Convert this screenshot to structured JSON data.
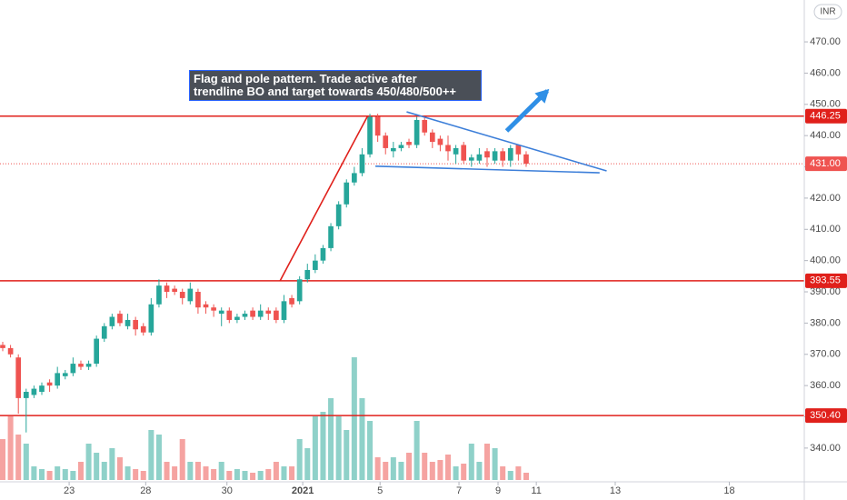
{
  "chart_data": {
    "type": "candlestick",
    "currency": "INR",
    "annotation": [
      "Flag and pole pattern. Trade active after",
      "trendline BO and target towards 450/480/500++"
    ],
    "x": [
      0,
      1,
      2,
      3,
      4,
      5,
      6,
      7,
      8,
      9,
      10,
      11,
      12,
      13,
      14,
      15,
      16,
      17,
      18,
      19,
      20,
      21,
      22,
      23,
      24,
      25,
      26,
      27,
      28,
      29,
      30,
      31,
      32,
      33,
      34,
      35,
      36,
      37,
      38,
      39,
      40,
      41,
      42,
      43,
      44,
      45,
      46,
      47,
      48,
      49,
      50,
      51,
      52,
      53,
      54,
      55,
      56,
      57,
      58,
      59,
      60,
      61,
      62,
      63,
      64,
      65,
      66,
      67
    ],
    "open": [
      373,
      372,
      369,
      356,
      357,
      358,
      361,
      360,
      363,
      364,
      367,
      366,
      367,
      375,
      379,
      383,
      379,
      381,
      379,
      377,
      386,
      392,
      391,
      390,
      387,
      390,
      386,
      385,
      383,
      384,
      381,
      382,
      384,
      382,
      384,
      384,
      381,
      388,
      387,
      394,
      397,
      400,
      404,
      411,
      418,
      425,
      428,
      434,
      446,
      440,
      435,
      436,
      438,
      437,
      445,
      441,
      439,
      437,
      434,
      437,
      432,
      432,
      435,
      432,
      435,
      432,
      437,
      434
    ],
    "high": [
      374,
      373,
      370,
      359,
      360,
      361,
      362,
      366,
      365,
      369,
      368,
      368,
      376,
      380,
      383,
      384,
      383,
      382,
      380,
      388,
      394,
      393,
      392,
      391,
      393,
      391,
      387,
      386,
      385,
      385,
      383,
      384,
      385,
      386,
      385,
      385,
      389,
      389,
      395,
      399,
      402,
      405,
      412,
      419,
      426,
      430,
      436,
      447,
      447,
      441,
      438,
      438,
      439,
      446,
      446,
      442,
      440,
      440,
      437,
      438,
      434,
      436,
      436,
      436,
      436,
      437,
      437,
      435
    ],
    "low": [
      371,
      369,
      351,
      345,
      356,
      357,
      358,
      359,
      362,
      363,
      365,
      365,
      366,
      374,
      378,
      379,
      378,
      376,
      376,
      376,
      385,
      388,
      389,
      386,
      386,
      383,
      383,
      382,
      379,
      380,
      380,
      381,
      381,
      381,
      381,
      380,
      380,
      385,
      386,
      393,
      396,
      399,
      403,
      410,
      417,
      424,
      427,
      433,
      438,
      434,
      433,
      435,
      436,
      436,
      440,
      436,
      435,
      432,
      431,
      431,
      430,
      431,
      430,
      431,
      430,
      430,
      432,
      430
    ],
    "close": [
      372,
      370,
      356,
      358,
      359,
      360,
      360,
      364,
      364,
      367,
      366,
      367,
      375,
      379,
      382,
      380,
      381,
      378,
      377,
      386,
      392,
      390,
      390,
      388,
      391,
      385,
      385,
      384,
      384,
      381,
      382,
      383,
      382,
      384,
      383,
      381,
      387,
      386,
      394,
      397,
      400,
      404,
      411,
      418,
      425,
      428,
      434,
      446,
      440,
      436,
      436,
      437,
      437,
      445,
      441,
      438,
      437,
      435,
      436,
      432,
      433,
      434,
      433,
      435,
      432,
      436,
      434,
      431
    ],
    "volume": [
      45,
      70,
      50,
      40,
      15,
      12,
      10,
      15,
      12,
      10,
      20,
      40,
      30,
      20,
      35,
      25,
      15,
      12,
      10,
      55,
      50,
      20,
      15,
      45,
      20,
      20,
      15,
      12,
      20,
      10,
      12,
      10,
      8,
      10,
      12,
      20,
      15,
      15,
      45,
      35,
      70,
      75,
      90,
      70,
      55,
      135,
      90,
      65,
      25,
      20,
      25,
      20,
      30,
      65,
      30,
      20,
      22,
      28,
      15,
      18,
      40,
      20,
      40,
      35,
      15,
      10,
      15,
      8
    ],
    "up_color": "#26a69a",
    "down_color": "#ef5350",
    "volume_up_color": "#8fd1c9",
    "volume_down_color": "#f5a3a1",
    "xlim": [
      -0.35,
      102.6
    ],
    "xticks": [
      {
        "value": 8.5,
        "label": "23"
      },
      {
        "value": 18.3,
        "label": "28"
      },
      {
        "value": 28.7,
        "label": "30"
      },
      {
        "value": 38.4,
        "label": "2021"
      },
      {
        "value": 48.3,
        "label": "5"
      },
      {
        "value": 58.4,
        "label": "7"
      },
      {
        "value": 63.4,
        "label": "9"
      },
      {
        "value": 68.3,
        "label": "11"
      },
      {
        "value": 78.4,
        "label": "13"
      },
      {
        "value": 93,
        "label": "18"
      }
    ],
    "ylim": [
      329.2,
      483.4
    ],
    "yticks": [
      {
        "value": 340,
        "label": "340.00"
      },
      {
        "value": 350,
        "label": "350.00"
      },
      {
        "value": 360,
        "label": "360.00"
      },
      {
        "value": 370,
        "label": "370.00"
      },
      {
        "value": 380,
        "label": "380.00"
      },
      {
        "value": 390,
        "label": "390.00"
      },
      {
        "value": 400,
        "label": "400.00"
      },
      {
        "value": 410,
        "label": "410.00"
      },
      {
        "value": 420,
        "label": "420.00"
      },
      {
        "value": 430,
        "label": "430.00"
      },
      {
        "value": 440,
        "label": "440.00"
      },
      {
        "value": 450,
        "label": "450.00"
      },
      {
        "value": 460,
        "label": "460.00"
      },
      {
        "value": 470,
        "label": "470.00"
      }
    ],
    "grid": false,
    "levels": [
      {
        "value": 446.25,
        "label": "446.25"
      },
      {
        "value": 393.55,
        "label": "393.55"
      },
      {
        "value": 350.4,
        "label": "350.40"
      }
    ],
    "level_color": "#e0201b",
    "last_price": {
      "value": 431,
      "label": "431.00"
    },
    "drawings": [
      {
        "type": "line",
        "color": "#e0201b",
        "x": [
          35.5,
          46.7
        ],
        "y": [
          393.55,
          446.25
        ]
      },
      {
        "type": "line",
        "color": "#3d7fd9",
        "x": [
          51.7,
          77.3
        ],
        "y": [
          447.6,
          428.7
        ]
      },
      {
        "type": "line",
        "color": "#3d7fd9",
        "x": [
          47.7,
          76.4
        ],
        "y": [
          430.2,
          428.1
        ]
      },
      {
        "type": "arrow",
        "color": "#2f8fe6",
        "x": [
          64.5,
          69.7
        ],
        "y": [
          441.5,
          454.3
        ]
      }
    ]
  }
}
